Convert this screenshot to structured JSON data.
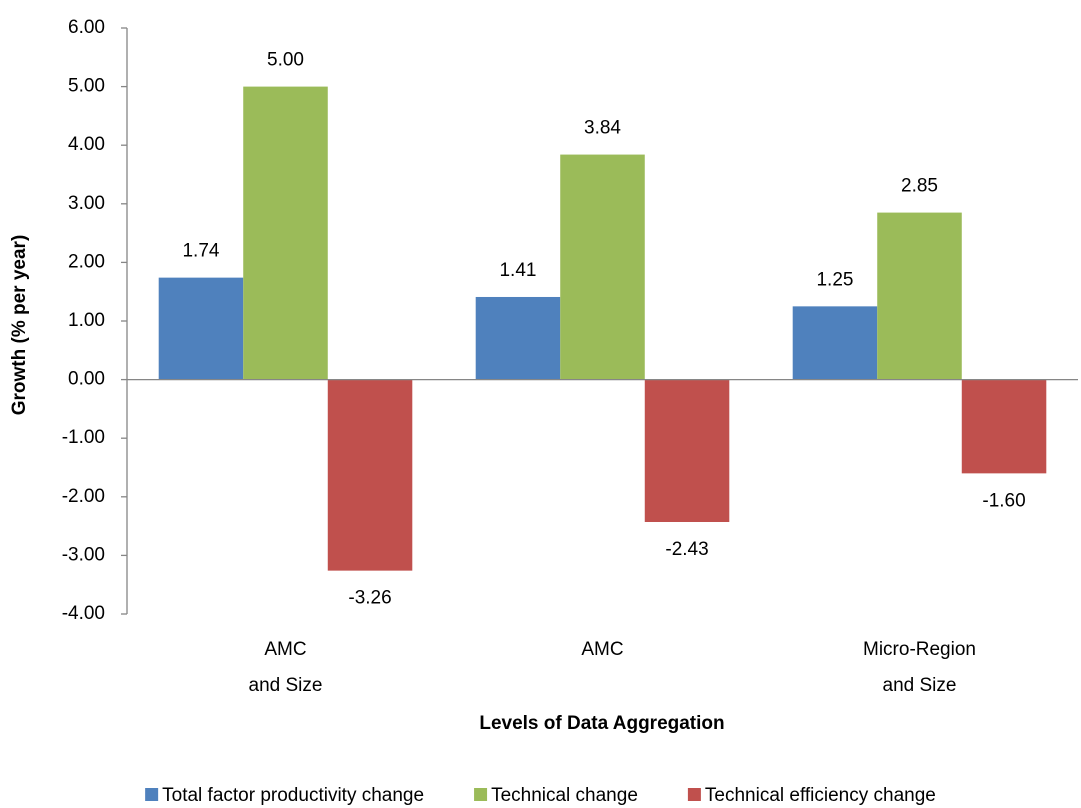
{
  "chart_data": {
    "type": "bar",
    "x_label": "Levels of Data Aggregation",
    "y_label": "Growth (% per year)",
    "categories": [
      [
        "AMC",
        "and Size"
      ],
      [
        "AMC"
      ],
      [
        "Micro-Region",
        "and Size"
      ]
    ],
    "series": [
      {
        "name": "Total factor productivity change",
        "color": "#4f81bd",
        "values": [
          1.74,
          1.41,
          1.25
        ],
        "value_labels": [
          "1.74",
          "1.41",
          "1.25"
        ]
      },
      {
        "name": "Technical change",
        "color": "#9bbb59",
        "values": [
          5,
          3.84,
          2.85
        ],
        "value_labels": [
          "5.00",
          "3.84",
          "2.85"
        ]
      },
      {
        "name": "Technical efficiency change",
        "color": "#c0504d",
        "values": [
          -3.26,
          -2.43,
          -1.6
        ],
        "value_labels": [
          "-3.26",
          "-2.43",
          "-1.60"
        ]
      }
    ],
    "ylim": [
      -4,
      6
    ],
    "yticks": [
      {
        "value": -4,
        "label": "-4.00"
      },
      {
        "value": -3,
        "label": "-3.00"
      },
      {
        "value": -2,
        "label": "-2.00"
      },
      {
        "value": -1,
        "label": "-1.00"
      },
      {
        "value": 0,
        "label": "0.00"
      },
      {
        "value": 1,
        "label": "1.00"
      },
      {
        "value": 2,
        "label": "2.00"
      },
      {
        "value": 3,
        "label": "3.00"
      },
      {
        "value": 4,
        "label": "4.00"
      },
      {
        "value": 5,
        "label": "5.00"
      },
      {
        "value": 6,
        "label": "6.00"
      }
    ],
    "grid": false,
    "legend": "bottom"
  }
}
